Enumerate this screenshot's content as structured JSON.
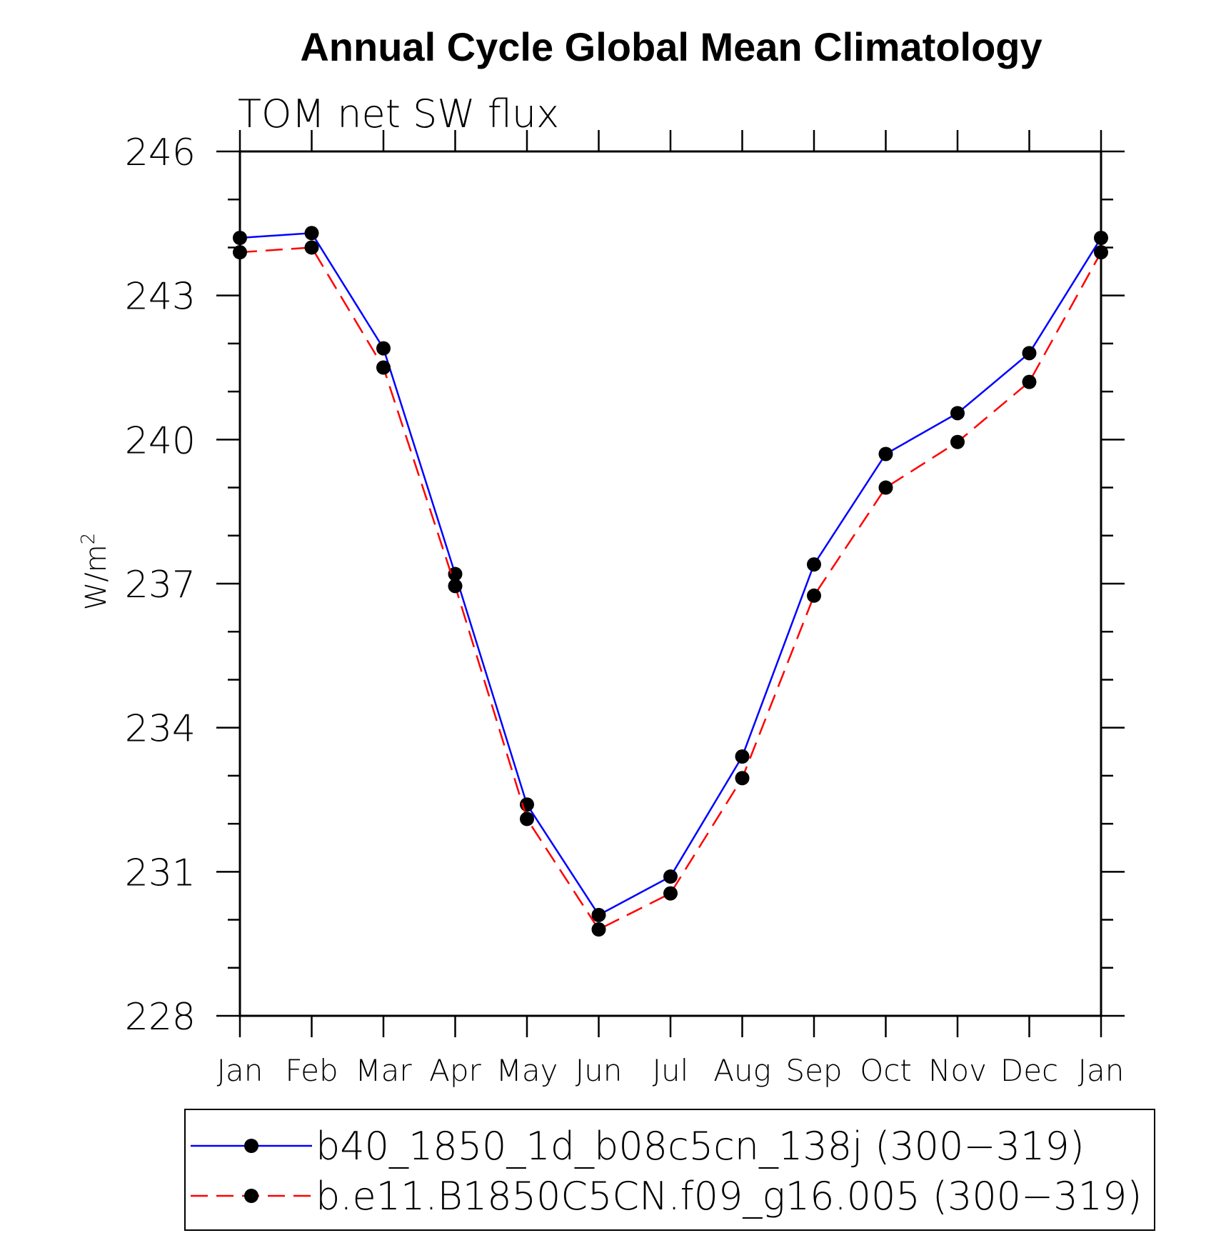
{
  "chart_data": {
    "type": "line",
    "title": "Annual Cycle Global Mean Climatology",
    "subtitle": "TOM net SW flux",
    "xlabel": "",
    "ylabel": "W/m",
    "ylabel_superscript": "2",
    "categories": [
      "Jan",
      "Feb",
      "Mar",
      "Apr",
      "May",
      "Jun",
      "Jul",
      "Aug",
      "Sep",
      "Oct",
      "Nov",
      "Dec",
      "Jan"
    ],
    "ylim": [
      228,
      246
    ],
    "yticks": [
      "228",
      "231",
      "234",
      "237",
      "240",
      "243",
      "246"
    ],
    "grid": false,
    "legend_position": "bottom",
    "series": [
      {
        "name": "b40_1850_1d_b08c5cn_138j (300−319)",
        "color": "#0000ff",
        "line_style": "solid",
        "marker": "filled-circle",
        "values": [
          244.2,
          244.3,
          241.9,
          237.2,
          232.4,
          230.1,
          230.9,
          233.4,
          237.4,
          239.7,
          240.55,
          241.8,
          244.2
        ]
      },
      {
        "name": "b.e11.B1850C5CN.f09_g16.005 (300−319)",
        "color": "#ff0000",
        "line_style": "dashed",
        "marker": "filled-circle",
        "values": [
          243.9,
          244.0,
          241.5,
          236.95,
          232.1,
          229.8,
          230.55,
          232.95,
          236.75,
          239.0,
          239.95,
          241.2,
          243.9
        ]
      }
    ]
  }
}
